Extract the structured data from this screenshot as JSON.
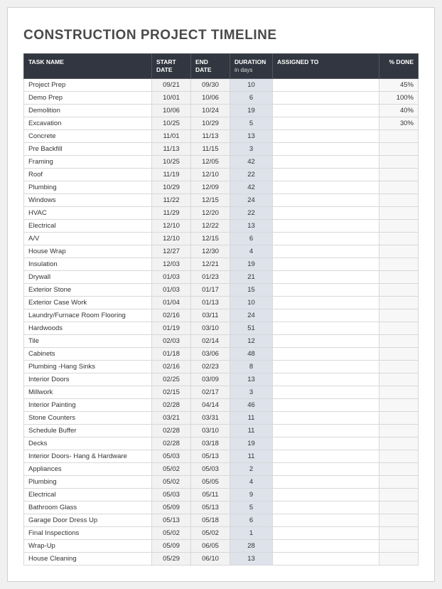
{
  "title": "CONSTRUCTION PROJECT TIMELINE",
  "columns": {
    "task": "TASK NAME",
    "start": "START DATE",
    "end": "END DATE",
    "duration": "DURATION",
    "duration_sub": "in days",
    "assigned": "ASSIGNED TO",
    "done": "% DONE"
  },
  "colors": {
    "header_bg": "#313640",
    "header_text": "#ffffff",
    "date_bg": "#f2f2f2",
    "duration_bg": "#dde2eb",
    "done_bg": "#f7f7f7",
    "border": "#d8d8d8",
    "page_bg": "#ffffff",
    "title_color": "#4a4a4a"
  },
  "rows": [
    {
      "task": "Project Prep",
      "start": "09/21",
      "end": "09/30",
      "duration": "10",
      "assigned": "",
      "done": "45%"
    },
    {
      "task": "Demo Prep",
      "start": "10/01",
      "end": "10/06",
      "duration": "6",
      "assigned": "",
      "done": "100%"
    },
    {
      "task": "Demolition",
      "start": "10/06",
      "end": "10/24",
      "duration": "19",
      "assigned": "",
      "done": "40%"
    },
    {
      "task": "Excavation",
      "start": "10/25",
      "end": "10/29",
      "duration": "5",
      "assigned": "",
      "done": "30%"
    },
    {
      "task": "Concrete",
      "start": "11/01",
      "end": "11/13",
      "duration": "13",
      "assigned": "",
      "done": ""
    },
    {
      "task": "Pre Backfill",
      "start": "11/13",
      "end": "11/15",
      "duration": "3",
      "assigned": "",
      "done": ""
    },
    {
      "task": "Framing",
      "start": "10/25",
      "end": "12/05",
      "duration": "42",
      "assigned": "",
      "done": ""
    },
    {
      "task": "Roof",
      "start": "11/19",
      "end": "12/10",
      "duration": "22",
      "assigned": "",
      "done": ""
    },
    {
      "task": "Plumbing",
      "start": "10/29",
      "end": "12/09",
      "duration": "42",
      "assigned": "",
      "done": ""
    },
    {
      "task": "Windows",
      "start": "11/22",
      "end": "12/15",
      "duration": "24",
      "assigned": "",
      "done": ""
    },
    {
      "task": "HVAC",
      "start": "11/29",
      "end": "12/20",
      "duration": "22",
      "assigned": "",
      "done": ""
    },
    {
      "task": "Electrical",
      "start": "12/10",
      "end": "12/22",
      "duration": "13",
      "assigned": "",
      "done": ""
    },
    {
      "task": "A/V",
      "start": "12/10",
      "end": "12/15",
      "duration": "6",
      "assigned": "",
      "done": ""
    },
    {
      "task": "House Wrap",
      "start": "12/27",
      "end": "12/30",
      "duration": "4",
      "assigned": "",
      "done": ""
    },
    {
      "task": "Insulation",
      "start": "12/03",
      "end": "12/21",
      "duration": "19",
      "assigned": "",
      "done": ""
    },
    {
      "task": "Drywall",
      "start": "01/03",
      "end": "01/23",
      "duration": "21",
      "assigned": "",
      "done": ""
    },
    {
      "task": "Exterior Stone",
      "start": "01/03",
      "end": "01/17",
      "duration": "15",
      "assigned": "",
      "done": ""
    },
    {
      "task": "Exterior Case Work",
      "start": "01/04",
      "end": "01/13",
      "duration": "10",
      "assigned": "",
      "done": ""
    },
    {
      "task": "Laundry/Furnace Room Flooring",
      "start": "02/16",
      "end": "03/11",
      "duration": "24",
      "assigned": "",
      "done": ""
    },
    {
      "task": "Hardwoods",
      "start": "01/19",
      "end": "03/10",
      "duration": "51",
      "assigned": "",
      "done": ""
    },
    {
      "task": "Tile",
      "start": "02/03",
      "end": "02/14",
      "duration": "12",
      "assigned": "",
      "done": ""
    },
    {
      "task": "Cabinets",
      "start": "01/18",
      "end": "03/06",
      "duration": "48",
      "assigned": "",
      "done": ""
    },
    {
      "task": "Plumbing -Hang Sinks",
      "start": "02/16",
      "end": "02/23",
      "duration": "8",
      "assigned": "",
      "done": ""
    },
    {
      "task": "Interior Doors",
      "start": "02/25",
      "end": "03/09",
      "duration": "13",
      "assigned": "",
      "done": ""
    },
    {
      "task": "Millwork",
      "start": "02/15",
      "end": "02/17",
      "duration": "3",
      "assigned": "",
      "done": ""
    },
    {
      "task": "Interior Painting",
      "start": "02/28",
      "end": "04/14",
      "duration": "46",
      "assigned": "",
      "done": ""
    },
    {
      "task": "Stone Counters",
      "start": "03/21",
      "end": "03/31",
      "duration": "11",
      "assigned": "",
      "done": ""
    },
    {
      "task": "Schedule Buffer",
      "start": "02/28",
      "end": "03/10",
      "duration": "11",
      "assigned": "",
      "done": ""
    },
    {
      "task": "Decks",
      "start": "02/28",
      "end": "03/18",
      "duration": "19",
      "assigned": "",
      "done": ""
    },
    {
      "task": "Interior Doors- Hang & Hardware",
      "start": "05/03",
      "end": "05/13",
      "duration": "11",
      "assigned": "",
      "done": ""
    },
    {
      "task": "Appliances",
      "start": "05/02",
      "end": "05/03",
      "duration": "2",
      "assigned": "",
      "done": ""
    },
    {
      "task": "Plumbing",
      "start": "05/02",
      "end": "05/05",
      "duration": "4",
      "assigned": "",
      "done": ""
    },
    {
      "task": "Electrical",
      "start": "05/03",
      "end": "05/11",
      "duration": "9",
      "assigned": "",
      "done": ""
    },
    {
      "task": "Bathroom Glass",
      "start": "05/09",
      "end": "05/13",
      "duration": "5",
      "assigned": "",
      "done": ""
    },
    {
      "task": "Garage Door Dress Up",
      "start": "05/13",
      "end": "05/18",
      "duration": "6",
      "assigned": "",
      "done": ""
    },
    {
      "task": "Final Inspections",
      "start": "05/02",
      "end": "05/02",
      "duration": "1",
      "assigned": "",
      "done": ""
    },
    {
      "task": "Wrap-Up",
      "start": "05/09",
      "end": "06/05",
      "duration": "28",
      "assigned": "",
      "done": ""
    },
    {
      "task": "House Cleaning",
      "start": "05/29",
      "end": "06/10",
      "duration": "13",
      "assigned": "",
      "done": ""
    }
  ]
}
